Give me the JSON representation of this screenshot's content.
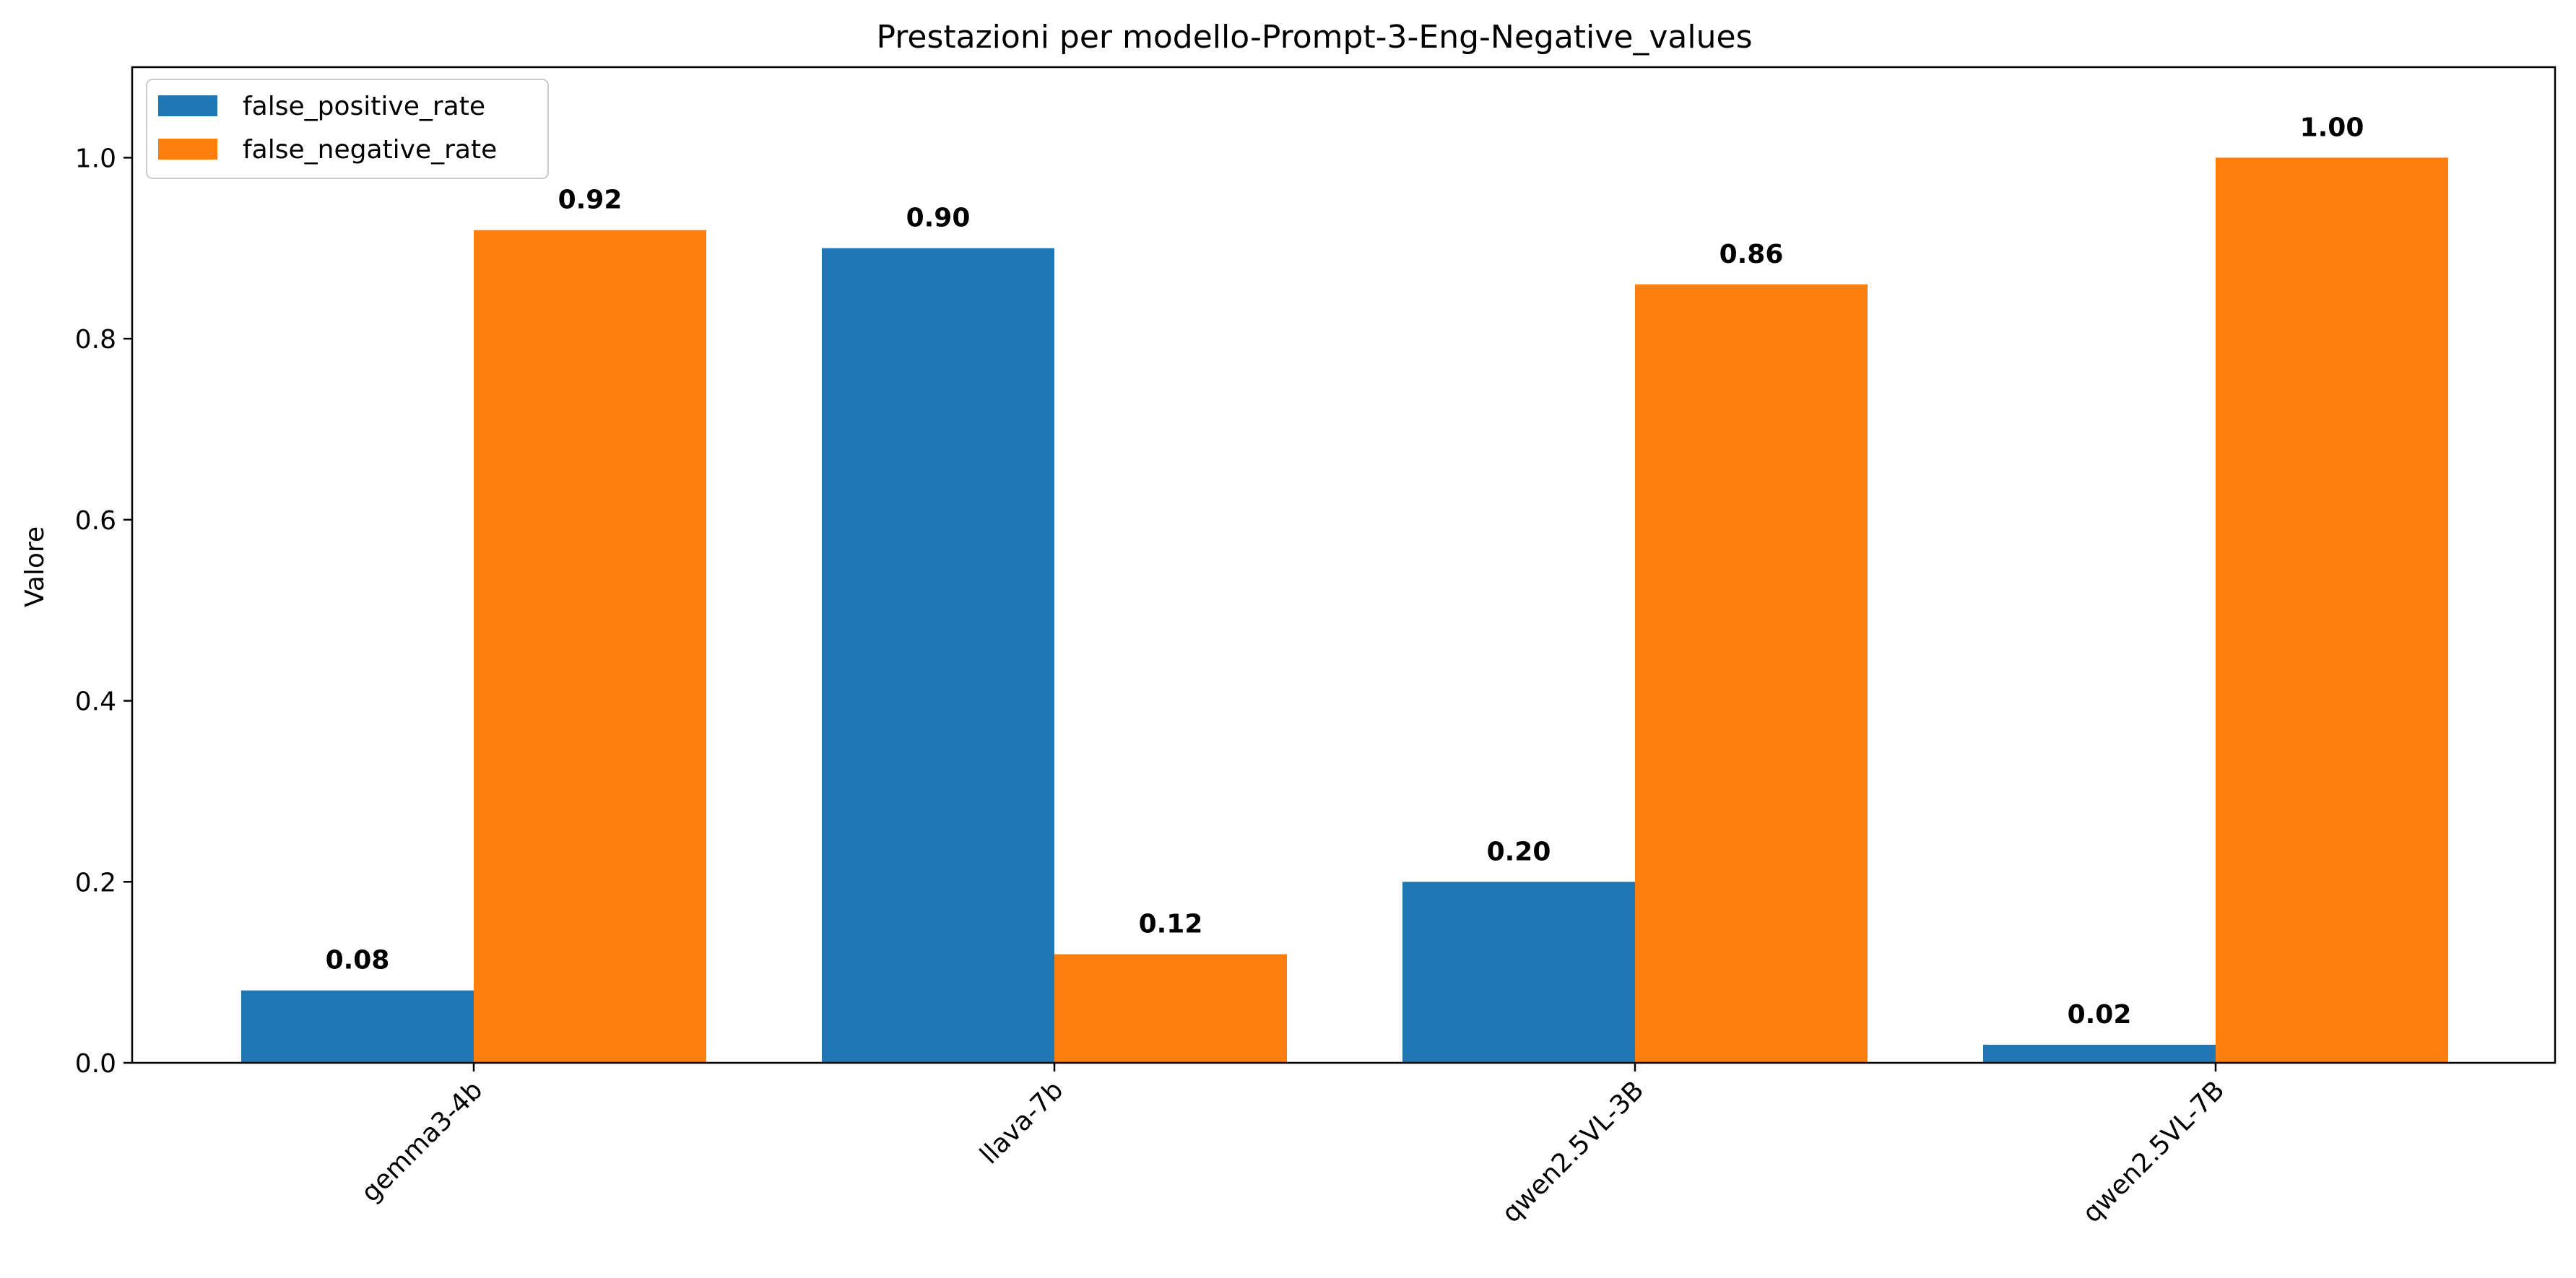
{
  "chart_data": {
    "type": "bar",
    "title": "Prestazioni per modello-Prompt-3-Eng-Negative_values",
    "xlabel": "",
    "ylabel": "Valore",
    "ylim": [
      0,
      1.1
    ],
    "yticks": [
      "0.0",
      "0.2",
      "0.4",
      "0.6",
      "0.8",
      "1.0"
    ],
    "categories": [
      "gemma3-4b",
      "llava-7b",
      "qwen2.5VL-3B",
      "qwen2.5VL-7B"
    ],
    "series": [
      {
        "name": "false_positive_rate",
        "color": "#1f77b4",
        "values": [
          0.08,
          0.9,
          0.2,
          0.02
        ],
        "labels": [
          "0.08",
          "0.90",
          "0.20",
          "0.02"
        ]
      },
      {
        "name": "false_negative_rate",
        "color": "#ff7f0e",
        "values": [
          0.92,
          0.12,
          0.86,
          1.0
        ],
        "labels": [
          "0.92",
          "0.12",
          "0.86",
          "1.00"
        ]
      }
    ],
    "grid": false,
    "legend_position": "top-left"
  }
}
